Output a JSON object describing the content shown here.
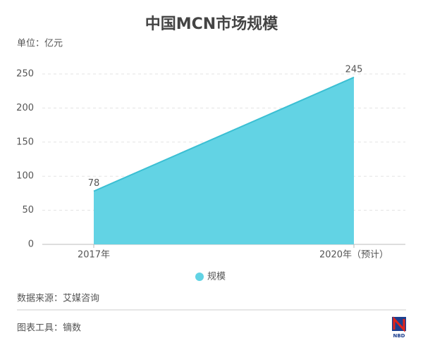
{
  "chart_data": {
    "type": "area",
    "title": "中国MCN市场规模",
    "unit_label": "单位：亿元",
    "categories": [
      "2017年",
      "2020年（预计）"
    ],
    "series": [
      {
        "name": "规模",
        "color": "#62d3e4",
        "line_color": "#3bbfd3",
        "values": [
          78,
          245
        ]
      }
    ],
    "ylim": [
      0,
      250
    ],
    "yticks": [
      0,
      50,
      100,
      150,
      200,
      250
    ],
    "grid": true
  },
  "footer": {
    "source": "数据来源：艾媒咨询",
    "tool": "图表工具：镝数",
    "logo": "NBD"
  }
}
